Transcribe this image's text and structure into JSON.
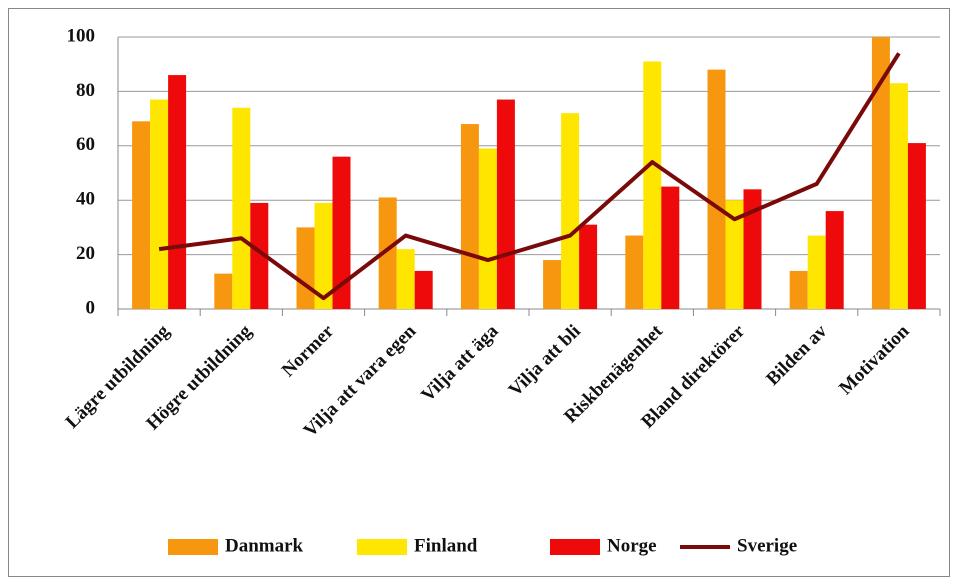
{
  "chart_data": {
    "type": "bar",
    "categories": [
      "Lägre utbildning",
      "Högre utbildning",
      "Normer",
      "Vilja att vara egen",
      "Vilja att äga",
      "Vilja att bli",
      "Riskbenägenhet",
      "Bland direktörer",
      "Bilden av",
      "Motivation"
    ],
    "series": [
      {
        "name": "Danmark",
        "color": "#f7960f",
        "values": [
          69,
          13,
          30,
          41,
          68,
          18,
          27,
          88,
          14,
          100
        ]
      },
      {
        "name": "Finland",
        "color": "#ffe600",
        "values": [
          77,
          74,
          39,
          22,
          59,
          72,
          91,
          40,
          27,
          83
        ]
      },
      {
        "name": "Norge",
        "color": "#ee0a0a",
        "values": [
          86,
          39,
          56,
          14,
          77,
          31,
          45,
          44,
          36,
          61
        ]
      },
      {
        "name": "Sverige",
        "color": "#7a0a0a",
        "type": "line",
        "values": [
          22,
          26,
          4,
          27,
          18,
          27,
          54,
          33,
          46,
          94
        ]
      }
    ],
    "ylim": [
      0,
      100
    ],
    "yticks": [
      0,
      20,
      40,
      60,
      80,
      100
    ],
    "grid": true,
    "legend": "bottom"
  }
}
